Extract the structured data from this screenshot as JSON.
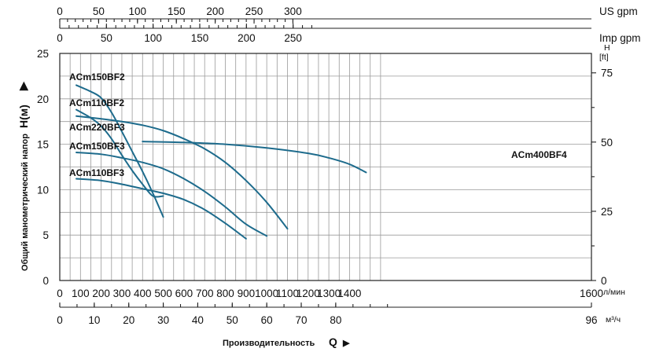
{
  "chart_data": {
    "type": "line",
    "y_axis_label": "Общий манометрический напор",
    "y_axis_symbol": "H(м)",
    "x_axis_label": "Производительность",
    "x_axis_symbol": "Q",
    "top_axis_1": {
      "unit": "US gpm",
      "ticks": [
        "0",
        "50",
        "100",
        "150",
        "200",
        "250",
        "300"
      ],
      "values": [
        0,
        50,
        100,
        150,
        200,
        250,
        300
      ]
    },
    "top_axis_2": {
      "unit": "Imp gpm",
      "ticks": [
        "0",
        "50",
        "100",
        "150",
        "200",
        "250"
      ],
      "values": [
        0,
        50,
        100,
        150,
        200,
        250
      ]
    },
    "bottom_axis_1": {
      "unit": "л/мин",
      "ticks": [
        "0",
        "100",
        "200",
        "300",
        "400",
        "500",
        "600",
        "700",
        "800",
        "900",
        "1000",
        "1100",
        "1200",
        "1300",
        "1400",
        "1600"
      ],
      "values": [
        0,
        100,
        200,
        300,
        400,
        500,
        600,
        700,
        800,
        900,
        1000,
        1100,
        1200,
        1300,
        1400,
        1600
      ]
    },
    "bottom_axis_2": {
      "unit": "м³/ч",
      "ticks": [
        "0",
        "10",
        "20",
        "30",
        "40",
        "50",
        "60",
        "70",
        "80",
        "96"
      ],
      "values": [
        0,
        10,
        20,
        30,
        40,
        50,
        60,
        70,
        80,
        96
      ]
    },
    "left_axis": {
      "ticks": [
        "0",
        "5",
        "10",
        "15",
        "20",
        "25"
      ],
      "values": [
        0,
        5,
        10,
        15,
        20,
        25
      ]
    },
    "right_axis": {
      "header_top": "H",
      "header_bottom": "[ft]",
      "ticks": [
        "0",
        "25",
        "50",
        "75"
      ],
      "values": [
        0,
        25,
        50,
        75
      ]
    },
    "xlim": [
      0,
      1600
    ],
    "ylim": [
      0,
      25
    ],
    "grid": true,
    "series": [
      {
        "name": "ACm150BF2",
        "x": [
          80,
          150,
          200,
          250,
          300,
          350,
          400,
          450,
          500
        ],
        "y": [
          21.5,
          20.8,
          20.1,
          18.5,
          16.4,
          14.2,
          12.0,
          9.6,
          7.0
        ]
      },
      {
        "name": "ACm110BF2",
        "x": [
          80,
          150,
          200,
          250,
          300,
          350,
          400,
          450,
          500
        ],
        "y": [
          18.8,
          17.9,
          17.0,
          15.6,
          13.8,
          12.1,
          10.6,
          9.3,
          9.3
        ]
      },
      {
        "name": "ACm220BF3",
        "x": [
          80,
          200,
          300,
          400,
          500,
          600,
          700,
          800,
          900,
          1000,
          1100
        ],
        "y": [
          18.1,
          17.8,
          17.5,
          17.1,
          16.5,
          15.6,
          14.5,
          13.0,
          11.0,
          8.6,
          5.7
        ]
      },
      {
        "name": "ACm150BF3",
        "x": [
          80,
          200,
          300,
          400,
          500,
          600,
          700,
          800,
          900,
          1000
        ],
        "y": [
          14.1,
          13.9,
          13.5,
          13.0,
          12.3,
          11.2,
          9.8,
          8.1,
          6.2,
          4.9
        ]
      },
      {
        "name": "ACm110BF3",
        "x": [
          80,
          200,
          300,
          400,
          500,
          600,
          700,
          800,
          900
        ],
        "y": [
          11.2,
          11.0,
          10.6,
          10.1,
          9.6,
          8.9,
          7.8,
          6.3,
          4.6
        ]
      },
      {
        "name": "ACm400BF4",
        "x": [
          400,
          600,
          800,
          1000,
          1200,
          1300,
          1400,
          1480
        ],
        "y": [
          15.3,
          15.2,
          15.0,
          14.6,
          14.0,
          13.5,
          12.8,
          11.9
        ]
      }
    ]
  }
}
